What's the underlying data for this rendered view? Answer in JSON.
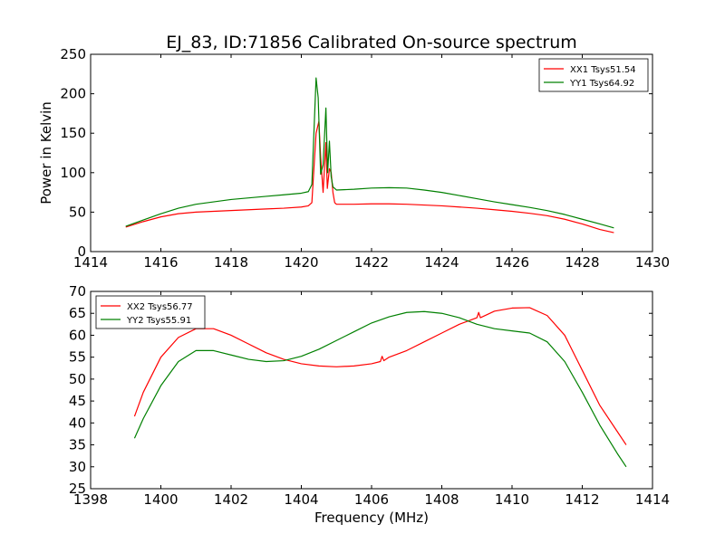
{
  "chart_data": [
    {
      "type": "line",
      "title": "EJ_83, ID:71856 Calibrated On-source spectrum",
      "xlabel": "",
      "ylabel": "Power in Kelvin",
      "xlim": [
        1414,
        1430
      ],
      "ylim": [
        0,
        250
      ],
      "xticks": [
        "1414",
        "1416",
        "1418",
        "1420",
        "1422",
        "1424",
        "1426",
        "1428",
        "1430"
      ],
      "yticks": [
        "0",
        "50",
        "100",
        "150",
        "200",
        "250"
      ],
      "grid": false,
      "legend_position": "top-right",
      "series": [
        {
          "name": "XX1 Tsys51.54",
          "color": "#ff0000",
          "x": [
            1415.0,
            1415.5,
            1416.0,
            1416.5,
            1417.0,
            1417.5,
            1418.0,
            1418.5,
            1419.0,
            1419.5,
            1420.0,
            1420.2,
            1420.3,
            1420.42,
            1420.5,
            1420.55,
            1420.62,
            1420.7,
            1420.74,
            1420.8,
            1420.85,
            1420.9,
            1420.95,
            1421.0,
            1421.5,
            1422.0,
            1422.5,
            1423.0,
            1423.5,
            1424.0,
            1424.5,
            1425.0,
            1425.5,
            1426.0,
            1426.5,
            1427.0,
            1427.5,
            1428.0,
            1428.5,
            1428.9
          ],
          "y": [
            31,
            38,
            44,
            48,
            50,
            51,
            52,
            53,
            54,
            55,
            56.5,
            58,
            62,
            150,
            165,
            120,
            75,
            138,
            80,
            105,
            100,
            75,
            62,
            60,
            60,
            60.5,
            60.5,
            60,
            59,
            58,
            56.5,
            55,
            53,
            51,
            48.5,
            45.5,
            41,
            35,
            28,
            24
          ]
        },
        {
          "name": "YY1 Tsys64.92",
          "color": "#008000",
          "x": [
            1415.0,
            1415.5,
            1416.0,
            1416.5,
            1417.0,
            1417.5,
            1418.0,
            1418.5,
            1419.0,
            1419.5,
            1420.0,
            1420.2,
            1420.3,
            1420.42,
            1420.48,
            1420.55,
            1420.62,
            1420.7,
            1420.75,
            1420.8,
            1420.85,
            1420.9,
            1420.95,
            1421.0,
            1421.5,
            1422.0,
            1422.5,
            1423.0,
            1423.5,
            1424.0,
            1424.5,
            1425.0,
            1425.5,
            1426.0,
            1426.5,
            1427.0,
            1427.5,
            1428.0,
            1428.5,
            1428.9
          ],
          "y": [
            32,
            40,
            48,
            55,
            60,
            63,
            66,
            68,
            70,
            72,
            74,
            76,
            85,
            220,
            195,
            98,
            110,
            182,
            100,
            140,
            95,
            82,
            80,
            78,
            79,
            80.5,
            81,
            80.5,
            78,
            75,
            71,
            67,
            63,
            59.5,
            56,
            52,
            47,
            41,
            35,
            30
          ]
        }
      ]
    },
    {
      "type": "line",
      "title": "",
      "xlabel": "Frequency (MHz)",
      "ylabel": "",
      "xlim": [
        1398,
        1414
      ],
      "ylim": [
        25,
        70
      ],
      "xticks": [
        "1398",
        "1400",
        "1402",
        "1404",
        "1406",
        "1408",
        "1410",
        "1412",
        "1414"
      ],
      "yticks": [
        "25",
        "30",
        "35",
        "40",
        "45",
        "50",
        "55",
        "60",
        "65",
        "70"
      ],
      "grid": false,
      "legend_position": "top-left",
      "series": [
        {
          "name": "XX2 Tsys56.77",
          "color": "#ff0000",
          "x": [
            1399.25,
            1399.5,
            1400.0,
            1400.5,
            1401.0,
            1401.5,
            1402.0,
            1402.5,
            1403.0,
            1403.5,
            1404.0,
            1404.5,
            1405.0,
            1405.5,
            1406.0,
            1406.25,
            1406.3,
            1406.35,
            1406.5,
            1407.0,
            1407.5,
            1408.0,
            1408.5,
            1409.0,
            1409.05,
            1409.1,
            1409.5,
            1410.0,
            1410.5,
            1411.0,
            1411.5,
            1412.0,
            1412.5,
            1413.0,
            1413.25
          ],
          "y": [
            41.5,
            47,
            55,
            59.5,
            61.5,
            61.5,
            60,
            58,
            56,
            54.5,
            53.5,
            53,
            52.8,
            53,
            53.5,
            54,
            55.2,
            54.2,
            55,
            56.5,
            58.5,
            60.5,
            62.5,
            64,
            65.2,
            64,
            65.5,
            66.2,
            66.3,
            64.5,
            60,
            52,
            44,
            38,
            35
          ]
        },
        {
          "name": "YY2 Tsys55.91",
          "color": "#008000",
          "x": [
            1399.25,
            1399.5,
            1400.0,
            1400.5,
            1401.0,
            1401.5,
            1402.0,
            1402.5,
            1403.0,
            1403.5,
            1404.0,
            1404.5,
            1405.0,
            1405.5,
            1406.0,
            1406.5,
            1407.0,
            1407.5,
            1408.0,
            1408.5,
            1409.0,
            1409.5,
            1410.0,
            1410.5,
            1411.0,
            1411.5,
            1412.0,
            1412.5,
            1413.0,
            1413.25
          ],
          "y": [
            36.5,
            41,
            48.5,
            54,
            56.5,
            56.5,
            55.5,
            54.5,
            54,
            54.2,
            55.2,
            56.8,
            58.8,
            60.8,
            62.8,
            64.2,
            65.2,
            65.4,
            65,
            64,
            62.5,
            61.5,
            61,
            60.5,
            58.5,
            54,
            47,
            39.5,
            33,
            30
          ]
        }
      ]
    }
  ]
}
